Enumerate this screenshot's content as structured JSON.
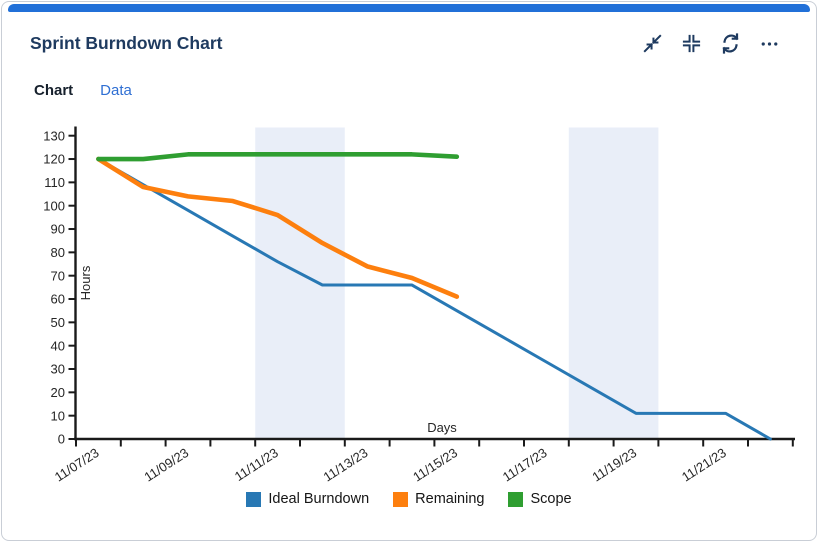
{
  "widget": {
    "title": "Sprint Burndown Chart",
    "accent_color": "#2170d8",
    "toolbar": {
      "collapse_label": "Collapse",
      "fit_label": "Fit to size",
      "refresh_label": "Refresh",
      "more_label": "More options"
    }
  },
  "tabs": [
    {
      "label": "Chart",
      "active": true
    },
    {
      "label": "Data",
      "active": false
    }
  ],
  "chart_data": {
    "type": "line",
    "xlabel": "Days",
    "ylabel": "Hours",
    "ylim": [
      0,
      134
    ],
    "yticks": [
      0,
      10,
      20,
      30,
      40,
      50,
      60,
      70,
      80,
      90,
      100,
      110,
      120,
      130
    ],
    "x": [
      "11/07/23",
      "11/08/23",
      "11/09/23",
      "11/10/23",
      "11/11/23",
      "11/12/23",
      "11/13/23",
      "11/14/23",
      "11/15/23",
      "11/16/23",
      "11/17/23",
      "11/18/23",
      "11/19/23",
      "11/20/23",
      "11/21/23",
      "11/22/23"
    ],
    "x_labeled_every": 2,
    "series": [
      {
        "name": "Ideal Burndown",
        "color": "#2878b4",
        "line_width": 3,
        "values": [
          120,
          109,
          98,
          87,
          76,
          66,
          66,
          66,
          55,
          44,
          33,
          22,
          11,
          11,
          11,
          0
        ]
      },
      {
        "name": "Remaining",
        "color": "#fd7f0e",
        "line_width": 4.6,
        "values": [
          120,
          108,
          104,
          102,
          96,
          84,
          74,
          69,
          61,
          null,
          null,
          null,
          null,
          null,
          null,
          null
        ]
      },
      {
        "name": "Scope",
        "color": "#2f9e31",
        "line_width": 4.6,
        "values": [
          120,
          120,
          122,
          122,
          122,
          122,
          122,
          122,
          121,
          null,
          null,
          null,
          null,
          null,
          null,
          null
        ]
      }
    ],
    "weekend_bands": [
      {
        "from": "11/11/23",
        "to": "11/12/23",
        "start_index": 4,
        "end_index": 6
      },
      {
        "from": "11/18/23",
        "to": "11/19/23",
        "start_index": 11,
        "end_index": 13
      }
    ],
    "band_color": "#e9eef8",
    "grid": false,
    "legend_position": "bottom"
  }
}
